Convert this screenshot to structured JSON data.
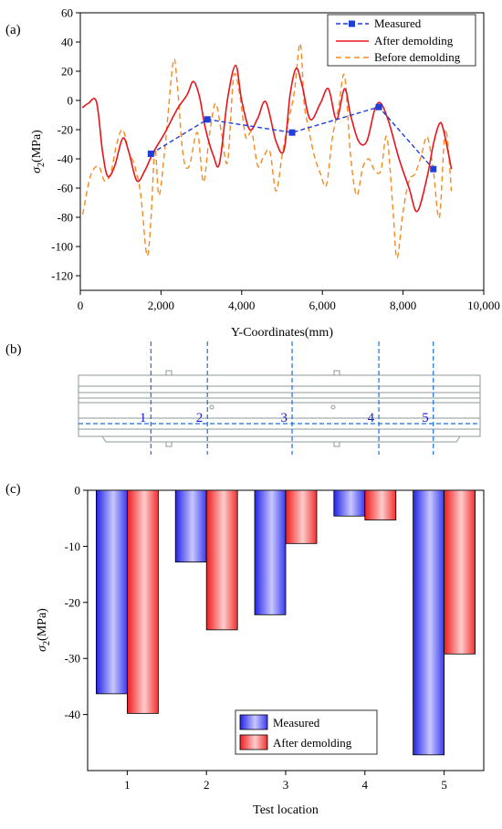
{
  "panel_labels": {
    "a": "(a)",
    "b": "(b)",
    "c": "(c)"
  },
  "chart_data": [
    {
      "type": "line",
      "xlabel": "Y-Coordinates(mm)",
      "ylabel_base": "σ",
      "ylabel_sub": "2",
      "ylabel_unit": "(MPa)",
      "xlim": [
        0,
        10000
      ],
      "ylim": [
        -130,
        60
      ],
      "xticks": [
        0,
        2000,
        4000,
        6000,
        8000,
        10000
      ],
      "xtick_labels": [
        "0",
        "2,000",
        "4,000",
        "6,000",
        "8,000",
        "10,000"
      ],
      "yticks": [
        60,
        40,
        20,
        0,
        -20,
        -40,
        -60,
        -80,
        -100,
        -120
      ],
      "legend_position": "top-right",
      "colors": {
        "measured": "#1f3fd8",
        "after": "#e8141c",
        "before": "#f58a1f"
      },
      "series": [
        {
          "name": "Measured",
          "key": "measured",
          "style": "dashed-square-markers",
          "x": [
            1750,
            3150,
            5250,
            7400,
            8750
          ],
          "y": [
            -36.5,
            -13,
            -22,
            -4.5,
            -47
          ]
        },
        {
          "name": "After demolding",
          "key": "after",
          "style": "solid",
          "x": [
            50,
            200,
            400,
            550,
            680,
            850,
            1050,
            1200,
            1400,
            1600,
            1800,
            2100,
            2400,
            2650,
            2800,
            2950,
            3100,
            3300,
            3450,
            3650,
            3850,
            4000,
            4200,
            4400,
            4600,
            4850,
            5050,
            5200,
            5350,
            5500,
            5700,
            5950,
            6150,
            6350,
            6550,
            6700,
            6900,
            7100,
            7300,
            7450,
            7650,
            7900,
            8150,
            8350,
            8600,
            8750,
            8900,
            9000,
            9200
          ],
          "y": [
            -5,
            -2,
            -1,
            -35,
            -52,
            -45,
            -26,
            -35,
            -55,
            -48,
            -36,
            -22,
            -6,
            4,
            13,
            3,
            -19,
            -38,
            -43,
            1,
            24,
            0,
            -20,
            -12,
            -1,
            -28,
            -34,
            4,
            22,
            10,
            -13,
            -2,
            8,
            -13,
            8,
            -10,
            -28,
            -28,
            -6,
            -2,
            -15,
            -40,
            -60,
            -76,
            -52,
            -30,
            -16,
            -20,
            -47
          ]
        },
        {
          "name": "Before demolding",
          "key": "before",
          "style": "dashed",
          "x": [
            60,
            250,
            450,
            600,
            750,
            900,
            1050,
            1200,
            1350,
            1500,
            1650,
            1750,
            1850,
            1950,
            2100,
            2300,
            2400,
            2550,
            2700,
            2900,
            3050,
            3200,
            3350,
            3500,
            3650,
            3800,
            3950,
            4100,
            4250,
            4400,
            4550,
            4700,
            4850,
            5000,
            5150,
            5300,
            5450,
            5550,
            5650,
            5800,
            5950,
            6100,
            6250,
            6400,
            6550,
            6700,
            6850,
            7000,
            7150,
            7300,
            7450,
            7600,
            7750,
            7850,
            8000,
            8150,
            8300,
            8450,
            8600,
            8750,
            8900,
            9050,
            9200
          ],
          "y": [
            -78,
            -52,
            -45,
            -55,
            -50,
            -30,
            -20,
            -35,
            -45,
            -65,
            -106,
            -82,
            -33,
            -65,
            -32,
            26,
            12,
            -38,
            -45,
            -22,
            -56,
            -24,
            -2,
            -22,
            -42,
            16,
            4,
            -25,
            -22,
            -45,
            -38,
            -35,
            -62,
            -38,
            -15,
            5,
            39,
            -2,
            -18,
            -38,
            -50,
            -58,
            -25,
            -5,
            17,
            -38,
            -65,
            -46,
            -40,
            -48,
            -48,
            -25,
            -75,
            -108,
            -76,
            -55,
            -50,
            -38,
            -25,
            -48,
            -80,
            -20,
            -62
          ]
        }
      ]
    },
    {
      "type": "diagram",
      "locations": [
        "1",
        "2",
        "3",
        "4",
        "5"
      ],
      "location_x": [
        1750,
        3150,
        5250,
        7400,
        8750
      ],
      "span_mm": [
        0,
        9300
      ],
      "dash_color": "#1f6fd8"
    },
    {
      "type": "bar",
      "xlabel": "Test location",
      "ylabel_base": "σ",
      "ylabel_sub": "2",
      "ylabel_unit": "(MPa)",
      "categories": [
        "1",
        "2",
        "3",
        "4",
        "5"
      ],
      "ylim": [
        -50,
        0
      ],
      "yticks": [
        0,
        -10,
        -20,
        -30,
        -40
      ],
      "legend_position": "bottom-center",
      "series": [
        {
          "name": "Measured",
          "key": "measured",
          "colors": [
            "#2222e6",
            "#c8c8ff"
          ],
          "values": [
            -36.3,
            -12.8,
            -22.2,
            -4.6,
            -47.2
          ]
        },
        {
          "name": "After demolding",
          "key": "after",
          "colors": [
            "#ee1c1c",
            "#ffcccc"
          ],
          "values": [
            -39.8,
            -24.9,
            -9.5,
            -5.3,
            -29.2
          ]
        }
      ]
    }
  ]
}
